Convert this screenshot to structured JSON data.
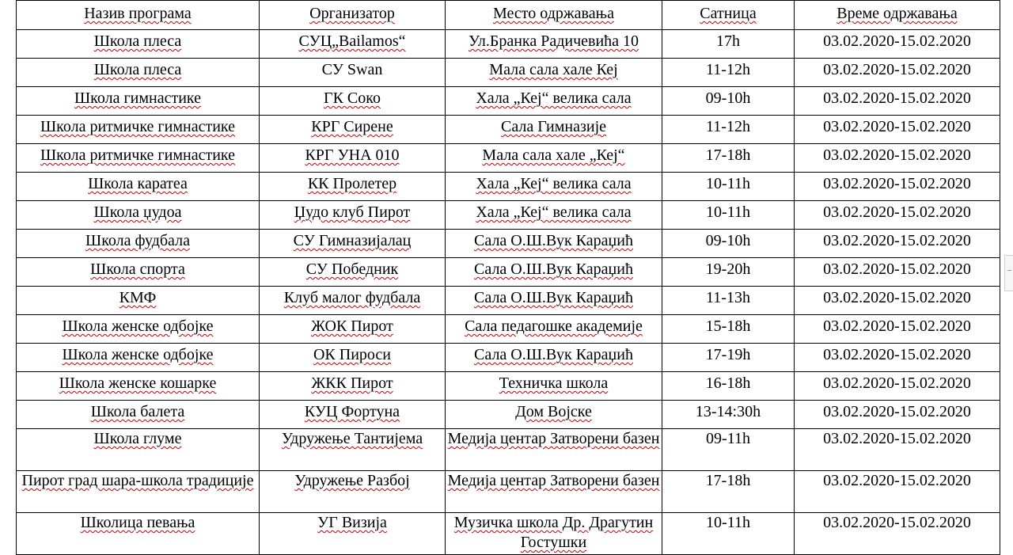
{
  "table": {
    "headers": [
      "Назив програма",
      "Организатор",
      "Место одржавања",
      "Сатница",
      "Време одржавања"
    ],
    "rows": [
      {
        "program": "Школа плеса",
        "organizer": "СУЦ„Bailamos“",
        "venue": "Ул.Бранка Радичевића 10",
        "time": "17h",
        "dates": "03.02.2020-15.02.2020"
      },
      {
        "program": "Школа плеса",
        "organizer": "СУ Swan",
        "venue": "Мала сала хале Кеј",
        "time": "11-12h",
        "dates": "03.02.2020-15.02.2020"
      },
      {
        "program": "Школа гимнастике",
        "organizer": "ГК Соко",
        "venue": "Хала „Кеј“ велика сала",
        "time": "09-10h",
        "dates": "03.02.2020-15.02.2020"
      },
      {
        "program": "Школа ритмичке гимнастике",
        "organizer": "КРГ Сирене",
        "venue": "Сала Гимназије",
        "time": "11-12h",
        "dates": "03.02.2020-15.02.2020"
      },
      {
        "program": "Школа ритмичке гимнастике",
        "organizer": "КРГ УНА 010",
        "venue": "Мала сала хале „Кеј“",
        "time": "17-18h",
        "dates": "03.02.2020-15.02.2020"
      },
      {
        "program": "Школа каратеа",
        "organizer": "КК Пролетер",
        "venue": "Хала „Кеј“ велика сала",
        "time": "10-11h",
        "dates": "03.02.2020-15.02.2020"
      },
      {
        "program": "Школа џудоа",
        "organizer": "Џудо клуб Пирот",
        "venue": "Хала „Кеј“ велика сала",
        "time": "10-11h",
        "dates": "03.02.2020-15.02.2020"
      },
      {
        "program": "Школа фудбала",
        "organizer": "СУ Гимназијалац",
        "venue": "Сала О.Ш.Вук Караџић",
        "time": "09-10h",
        "dates": "03.02.2020-15.02.2020"
      },
      {
        "program": "Школа спорта",
        "organizer": "СУ Победник",
        "venue": "Сала О.Ш.Вук Караџић",
        "time": "19-20h",
        "dates": "03.02.2020-15.02.2020"
      },
      {
        "program": "КМФ",
        "organizer": "Клуб малог фудбала",
        "venue": "Сала О.Ш.Вук Караџић",
        "time": "11-13h",
        "dates": "03.02.2020-15.02.2020"
      },
      {
        "program": "Школа женске одбојке",
        "organizer": "ЖОК Пирот",
        "venue": "Сала педагошке академије",
        "time": "15-18h",
        "dates": "03.02.2020-15.02.2020"
      },
      {
        "program": "Школа женске одбојке",
        "organizer": "ОК Пироси",
        "venue": "Сала О.Ш.Вук Караџић",
        "time": "17-19h",
        "dates": "03.02.2020-15.02.2020"
      },
      {
        "program": "Школа женске кошарке",
        "organizer": "ЖКК Пирот",
        "venue": "Техничка школа",
        "time": "16-18h",
        "dates": "03.02.2020-15.02.2020"
      },
      {
        "program": "Школа балета",
        "organizer": "КУЦ Фортуна",
        "venue": "Дом Војске",
        "time": "13-14:30h",
        "dates": "03.02.2020-15.02.2020"
      },
      {
        "program": "Школа глуме",
        "organizer": "Удружење Тантијема",
        "venue": "Медија центар Затворени базен",
        "time": "09-11h",
        "dates": "03.02.2020-15.02.2020"
      },
      {
        "program": "Пирот град шара-школа традиције",
        "organizer": "Удружење Разбој",
        "venue": "Медија центар Затворени базен",
        "time": "17-18h",
        "dates": "03.02.2020-15.02.2020"
      },
      {
        "program": "Школица певања",
        "organizer": "УГ Визија",
        "venue": "Музичка школа Др. Драгутин Гостушки",
        "time": "10-11h",
        "dates": "03.02.2020-15.02.2020"
      }
    ]
  }
}
